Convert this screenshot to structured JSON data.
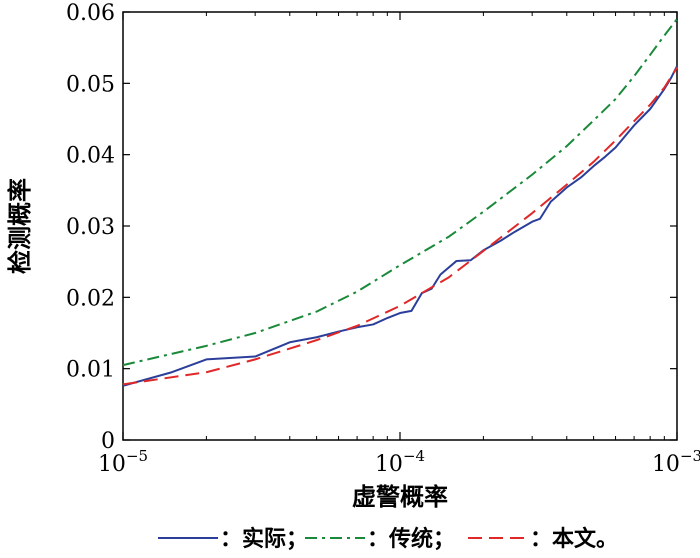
{
  "chart_data": {
    "type": "line",
    "xlabel": "虚警概率",
    "ylabel": "检测概率",
    "x_scale": "log",
    "xlim": [
      1e-05,
      0.001
    ],
    "ylim": [
      0,
      0.06
    ],
    "x_ticks": [
      {
        "value": 1e-05,
        "base": "10",
        "exp": "−5"
      },
      {
        "value": 0.0001,
        "base": "10",
        "exp": "−4"
      },
      {
        "value": 0.001,
        "base": "10",
        "exp": "−3"
      }
    ],
    "y_ticks": [
      {
        "value": 0,
        "label": "0"
      },
      {
        "value": 0.01,
        "label": "0.01"
      },
      {
        "value": 0.02,
        "label": "0.02"
      },
      {
        "value": 0.03,
        "label": "0.03"
      },
      {
        "value": 0.04,
        "label": "0.04"
      },
      {
        "value": 0.05,
        "label": "0.05"
      },
      {
        "value": 0.06,
        "label": "0.06"
      }
    ],
    "series": [
      {
        "name": "实际",
        "legend_label": "：实际；",
        "color": "#2b3f9a",
        "dash": "solid",
        "points": [
          [
            1e-05,
            0.0076
          ],
          [
            1.5e-05,
            0.0095
          ],
          [
            2e-05,
            0.0113
          ],
          [
            3e-05,
            0.0117
          ],
          [
            4e-05,
            0.0137
          ],
          [
            5e-05,
            0.0144
          ],
          [
            6e-05,
            0.0152
          ],
          [
            7e-05,
            0.0158
          ],
          [
            8e-05,
            0.0162
          ],
          [
            9e-05,
            0.0171
          ],
          [
            0.0001,
            0.0178
          ],
          [
            0.00011,
            0.0181
          ],
          [
            0.00012,
            0.0206
          ],
          [
            0.00013,
            0.0212
          ],
          [
            0.00014,
            0.0232
          ],
          [
            0.00016,
            0.0251
          ],
          [
            0.00018,
            0.0252
          ],
          [
            0.0002,
            0.0266
          ],
          [
            0.00023,
            0.0279
          ],
          [
            0.00026,
            0.0292
          ],
          [
            0.0003,
            0.0306
          ],
          [
            0.00032,
            0.031
          ],
          [
            0.00035,
            0.0334
          ],
          [
            0.0004,
            0.0354
          ],
          [
            0.00045,
            0.0368
          ],
          [
            0.0005,
            0.0384
          ],
          [
            0.00055,
            0.0397
          ],
          [
            0.0006,
            0.041
          ],
          [
            0.0007,
            0.0441
          ],
          [
            0.0008,
            0.0464
          ],
          [
            0.0009,
            0.0492
          ],
          [
            0.00095,
            0.0507
          ],
          [
            0.001,
            0.0524
          ]
        ]
      },
      {
        "name": "传统",
        "legend_label": "：传统；",
        "color": "#1a8a3a",
        "dash": "dashdot",
        "points": [
          [
            1e-05,
            0.0105
          ],
          [
            2e-05,
            0.0132
          ],
          [
            3e-05,
            0.015
          ],
          [
            5e-05,
            0.018
          ],
          [
            7e-05,
            0.0208
          ],
          [
            0.0001,
            0.0245
          ],
          [
            0.00015,
            0.0285
          ],
          [
            0.0002,
            0.032
          ],
          [
            0.0003,
            0.0372
          ],
          [
            0.0004,
            0.0412
          ],
          [
            0.0005,
            0.0448
          ],
          [
            0.0006,
            0.0478
          ],
          [
            0.0007,
            0.051
          ],
          [
            0.0008,
            0.054
          ],
          [
            0.0009,
            0.0567
          ],
          [
            0.001,
            0.059
          ]
        ]
      },
      {
        "name": "本文",
        "legend_label": "：本文。",
        "color": "#e02828",
        "dash": "dashed",
        "points": [
          [
            1e-05,
            0.0078
          ],
          [
            2e-05,
            0.0095
          ],
          [
            3e-05,
            0.0113
          ],
          [
            5e-05,
            0.014
          ],
          [
            7e-05,
            0.016
          ],
          [
            0.0001,
            0.0188
          ],
          [
            0.00015,
            0.0228
          ],
          [
            0.0002,
            0.0265
          ],
          [
            0.0003,
            0.0318
          ],
          [
            0.0004,
            0.0358
          ],
          [
            0.0005,
            0.039
          ],
          [
            0.0006,
            0.042
          ],
          [
            0.0007,
            0.0447
          ],
          [
            0.0008,
            0.047
          ],
          [
            0.0009,
            0.0494
          ],
          [
            0.001,
            0.0522
          ]
        ]
      }
    ],
    "grid": false,
    "legend_position": "bottom"
  }
}
